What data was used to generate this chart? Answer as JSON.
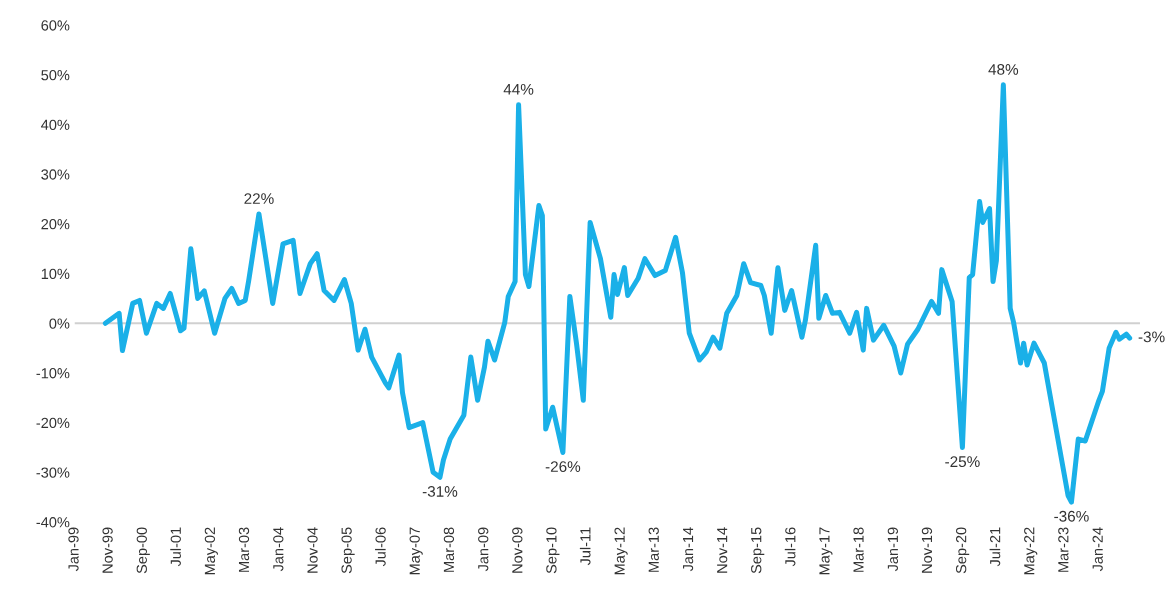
{
  "chart_data": {
    "type": "line",
    "color": "#1ab0e8",
    "x": [
      "1999-10",
      "2000-02",
      "2000-03",
      "2000-06",
      "2000-08",
      "2000-10",
      "2001-01",
      "2001-03",
      "2001-05",
      "2001-08",
      "2001-09",
      "2001-11",
      "2002-01",
      "2002-03",
      "2002-06",
      "2002-09",
      "2002-11",
      "2003-01",
      "2003-03",
      "2003-04",
      "2003-07",
      "2003-09",
      "2003-11",
      "2004-02",
      "2004-05",
      "2004-07",
      "2004-10",
      "2004-12",
      "2005-02",
      "2005-05",
      "2005-08",
      "2005-10",
      "2005-12",
      "2006-02",
      "2006-04",
      "2006-08",
      "2006-09",
      "2006-12",
      "2007-01",
      "2007-03",
      "2007-07",
      "2007-10",
      "2007-12",
      "2008-01",
      "2008-03",
      "2008-07",
      "2008-09",
      "2008-11",
      "2009-01",
      "2009-02",
      "2009-04",
      "2009-07",
      "2009-08",
      "2009-10",
      "2009-11",
      "2010-01",
      "2010-02",
      "2010-05",
      "2010-06",
      "2010-07",
      "2010-09",
      "2010-12",
      "2011-02",
      "2011-04",
      "2011-06",
      "2011-08",
      "2011-11",
      "2012-02",
      "2012-03",
      "2012-04",
      "2012-06",
      "2012-07",
      "2012-10",
      "2012-12",
      "2013-03",
      "2013-06",
      "2013-09",
      "2013-11",
      "2014-01",
      "2014-04",
      "2014-06",
      "2014-08",
      "2014-10",
      "2014-12",
      "2015-03",
      "2015-05",
      "2015-07",
      "2015-10",
      "2015-11",
      "2016-01",
      "2016-03",
      "2016-05",
      "2016-07",
      "2016-10",
      "2016-11",
      "2017-02",
      "2017-03",
      "2017-05",
      "2017-07",
      "2017-09",
      "2017-12",
      "2018-02",
      "2018-04",
      "2018-05",
      "2018-07",
      "2018-10",
      "2019-01",
      "2019-03",
      "2019-05",
      "2019-08",
      "2019-12",
      "2020-02",
      "2020-03",
      "2020-06",
      "2020-09",
      "2020-11",
      "2020-12",
      "2021-02",
      "2021-03",
      "2021-05",
      "2021-06",
      "2021-07",
      "2021-09",
      "2021-11",
      "2021-12",
      "2022-02",
      "2022-03",
      "2022-04",
      "2022-06",
      "2022-09",
      "2022-12",
      "2023-04",
      "2023-05",
      "2023-07",
      "2023-09",
      "2024-01",
      "2024-02",
      "2024-04",
      "2024-06",
      "2024-07",
      "2024-09",
      "2024-10"
    ],
    "values": [
      0,
      2,
      -5.5,
      4,
      4.6,
      -2,
      4,
      3,
      6,
      -1.5,
      -1,
      15,
      5,
      6.5,
      -2,
      5,
      7,
      4,
      4.6,
      8.6,
      22,
      13,
      4,
      16,
      16.7,
      6,
      12,
      14,
      6.6,
      4.6,
      8.8,
      4,
      -5.4,
      -1.2,
      -6.8,
      -12,
      -13,
      -6.4,
      -14,
      -21,
      -20,
      -30,
      -31,
      -27.5,
      -23.3,
      -18.5,
      -6.8,
      -15.5,
      -8.8,
      -3.6,
      -7.4,
      0.2,
      5.4,
      8.4,
      44,
      9.8,
      7.4,
      23.7,
      21.7,
      -21.3,
      -16.9,
      -26,
      5.4,
      -4,
      -15.5,
      20.3,
      13,
      1.2,
      9.8,
      5.8,
      11.2,
      5.6,
      9,
      13,
      9.6,
      10.6,
      17.3,
      10.2,
      -2,
      -7.4,
      -5.8,
      -2.8,
      -5,
      2,
      5.6,
      12,
      8.2,
      7.6,
      5.6,
      -2,
      11.2,
      2.6,
      6.6,
      -2.8,
      0.6,
      15.7,
      1,
      5.6,
      2,
      2.2,
      -2,
      2.2,
      -5.4,
      3,
      -3.4,
      -0.4,
      -4.6,
      -10,
      -4.2,
      -1.2,
      4.4,
      2,
      10.8,
      4.4,
      -25,
      9.2,
      9.8,
      24.5,
      20.3,
      23.1,
      8.4,
      12.6,
      48,
      3,
      0.2,
      -8,
      -4,
      -8.4,
      -4,
      -8,
      -19.5,
      -34.7,
      -36,
      -23.3,
      -23.7,
      -15.5,
      -13.7,
      -5,
      -1.8,
      -3.2,
      -2.2,
      -3
    ],
    "xlim": [
      "1999-01",
      "2025-01"
    ],
    "xticks": [
      {
        "value": "1999-01",
        "label": "Jan-99"
      },
      {
        "value": "1999-11",
        "label": "Nov-99"
      },
      {
        "value": "2000-09",
        "label": "Sep-00"
      },
      {
        "value": "2001-07",
        "label": "Jul-01"
      },
      {
        "value": "2002-05",
        "label": "May-02"
      },
      {
        "value": "2003-03",
        "label": "Mar-03"
      },
      {
        "value": "2004-01",
        "label": "Jan-04"
      },
      {
        "value": "2004-11",
        "label": "Nov-04"
      },
      {
        "value": "2005-09",
        "label": "Sep-05"
      },
      {
        "value": "2006-07",
        "label": "Jul-06"
      },
      {
        "value": "2007-05",
        "label": "May-07"
      },
      {
        "value": "2008-03",
        "label": "Mar-08"
      },
      {
        "value": "2009-01",
        "label": "Jan-09"
      },
      {
        "value": "2009-11",
        "label": "Nov-09"
      },
      {
        "value": "2010-09",
        "label": "Sep-10"
      },
      {
        "value": "2011-07",
        "label": "Jul-11"
      },
      {
        "value": "2012-05",
        "label": "May-12"
      },
      {
        "value": "2013-03",
        "label": "Mar-13"
      },
      {
        "value": "2014-01",
        "label": "Jan-14"
      },
      {
        "value": "2014-11",
        "label": "Nov-14"
      },
      {
        "value": "2015-09",
        "label": "Sep-15"
      },
      {
        "value": "2016-07",
        "label": "Jul-16"
      },
      {
        "value": "2017-05",
        "label": "May-17"
      },
      {
        "value": "2018-03",
        "label": "Mar-18"
      },
      {
        "value": "2019-01",
        "label": "Jan-19"
      },
      {
        "value": "2019-11",
        "label": "Nov-19"
      },
      {
        "value": "2020-09",
        "label": "Sep-20"
      },
      {
        "value": "2021-07",
        "label": "Jul-21"
      },
      {
        "value": "2022-05",
        "label": "May-22"
      },
      {
        "value": "2023-03",
        "label": "Mar-23"
      },
      {
        "value": "2024-01",
        "label": "Jan-24"
      }
    ],
    "ylim": [
      -40,
      60
    ],
    "yticks": [
      {
        "value": -40,
        "label": "-40%"
      },
      {
        "value": -30,
        "label": "-30%"
      },
      {
        "value": -20,
        "label": "-20%"
      },
      {
        "value": -10,
        "label": "-10%"
      },
      {
        "value": 0,
        "label": "0%"
      },
      {
        "value": 10,
        "label": "10%"
      },
      {
        "value": 20,
        "label": "20%"
      },
      {
        "value": 30,
        "label": "30%"
      },
      {
        "value": 40,
        "label": "40%"
      },
      {
        "value": 50,
        "label": "50%"
      },
      {
        "value": 60,
        "label": "60%"
      }
    ],
    "ref_lines": [
      {
        "axis": "y",
        "value": 0,
        "color": "#d0d0d0"
      }
    ],
    "annotations": [
      {
        "text": "22%",
        "x": "2003-07",
        "y": 22
      },
      {
        "text": "-31%",
        "x": "2007-12",
        "y": -31
      },
      {
        "text": "44%",
        "x": "2009-11",
        "y": 44
      },
      {
        "text": "-26%",
        "x": "2010-12",
        "y": -26
      },
      {
        "text": "-25%",
        "x": "2020-09",
        "y": -25
      },
      {
        "text": "48%",
        "x": "2021-09",
        "y": 48
      },
      {
        "text": "-36%",
        "x": "2023-05",
        "y": -36
      },
      {
        "text": "-3%",
        "x": "2024-10",
        "y": -3
      }
    ],
    "grid": false,
    "legend": false
  }
}
